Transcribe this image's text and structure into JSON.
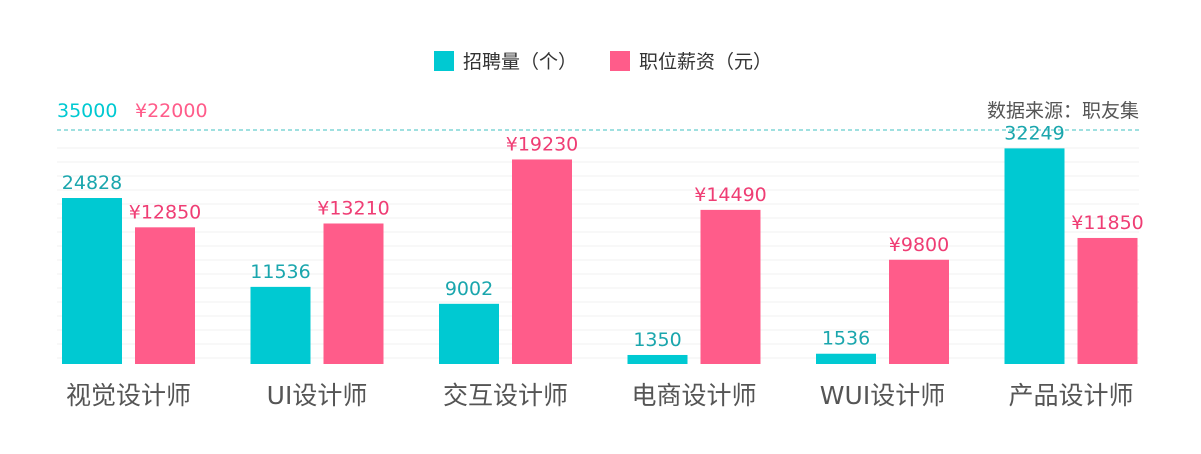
{
  "chart_data": {
    "type": "bar",
    "legend_position": "top",
    "categories": [
      "视觉设计师",
      "UI设计师",
      "交互设计师",
      "电商设计师",
      "WUI设计师",
      "产品设计师"
    ],
    "series": [
      {
        "name": "招聘量（个）",
        "color": "#00c9d2",
        "values": [
          24828,
          11536,
          9002,
          1350,
          1536,
          32249
        ],
        "labels": [
          "24828",
          "11536",
          "9002",
          "1350",
          "1536",
          "32249"
        ],
        "max": 35000,
        "max_label": "35000"
      },
      {
        "name": "职位薪资（元）",
        "color": "#ff5c8a",
        "values": [
          12850,
          13210,
          19230,
          14490,
          9800,
          11850
        ],
        "labels": [
          "¥12850",
          "¥13210",
          "¥19230",
          "¥14490",
          "¥9800",
          "¥11850"
        ],
        "max": 22000,
        "max_label": "¥22000"
      }
    ],
    "source": "数据来源：职友集",
    "grid": true
  }
}
